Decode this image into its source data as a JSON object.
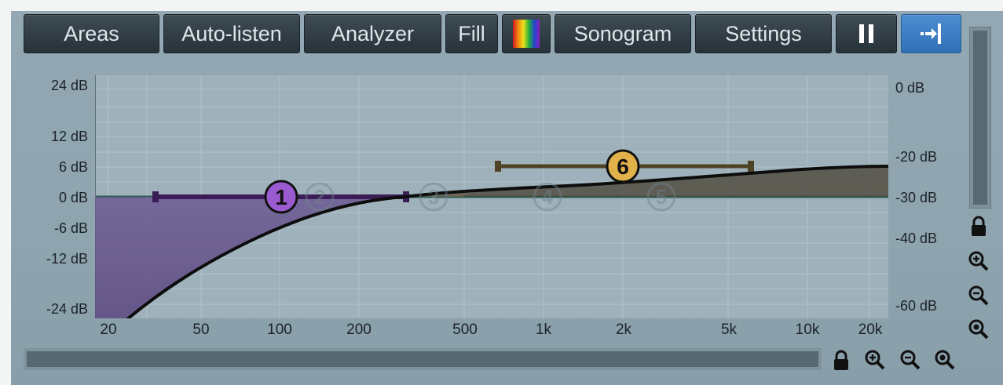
{
  "toolbar": {
    "areas": "Areas",
    "auto_listen": "Auto-listen",
    "analyzer": "Analyzer",
    "fill": "Fill",
    "sonogram": "Sonogram",
    "settings": "Settings"
  },
  "gain_scale": [
    "24 dB",
    "12 dB",
    "6 dB",
    "0 dB",
    "-6 dB",
    "-12 dB",
    "-24 dB"
  ],
  "db_scale": [
    "0 dB",
    "-20 dB",
    "-30 dB",
    "-40 dB",
    "-60 dB"
  ],
  "freq_scale": [
    "20",
    "50",
    "100",
    "200",
    "500",
    "1k",
    "2k",
    "5k",
    "10k",
    "20k"
  ],
  "bands": [
    "1",
    "2",
    "3",
    "4",
    "5",
    "6"
  ],
  "icons": {
    "color_palette": "color-palette-icon",
    "pause": "pause-icon",
    "snap": "snap-to-end-icon",
    "lock": "lock-icon",
    "zoom_in": "zoom-in-icon",
    "zoom_out": "zoom-out-icon",
    "zoom_reset": "zoom-reset-icon"
  },
  "colors": {
    "band1": "#9b5bd0",
    "band6": "#e2b24a",
    "accent_button": "#3a7cc4",
    "curve": "#0d0d0d"
  }
}
